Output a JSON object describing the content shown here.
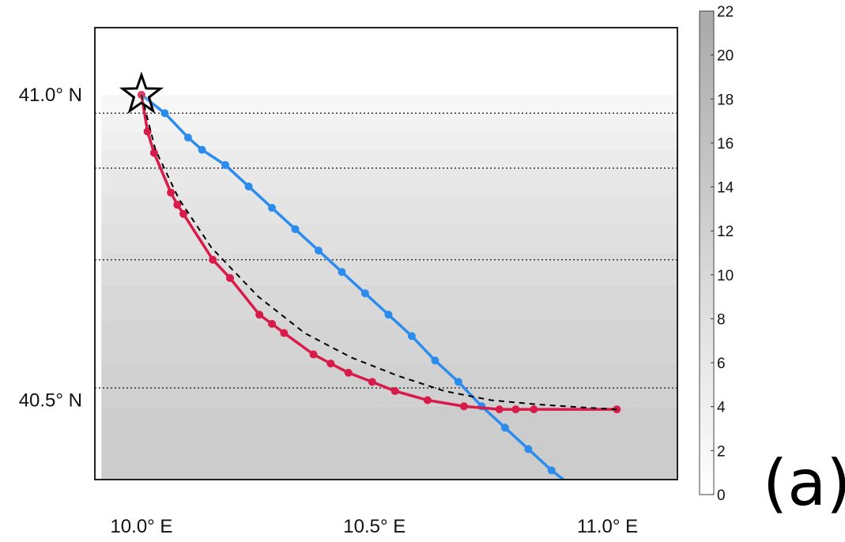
{
  "panel_label": "(a)",
  "colors": {
    "fixed_route": "#2b8cee",
    "optimal_route": "#d81b4a",
    "reference": "#000000",
    "contour": "#333333",
    "background_high": "#f4f4f4",
    "background_low": "#aaaaaa"
  },
  "chart_data": {
    "type": "line",
    "title": "",
    "xlabel": "",
    "ylabel": "",
    "xlim": [
      9.9,
      11.15
    ],
    "ylim": [
      40.37,
      41.11
    ],
    "x_ticks": [
      {
        "value": 10.0,
        "label": "10.0° E"
      },
      {
        "value": 10.5,
        "label": "10.5° E"
      },
      {
        "value": 11.0,
        "label": "11.0° E"
      }
    ],
    "y_ticks": [
      {
        "value": 41.0,
        "label": "41.0° N"
      },
      {
        "value": 40.5,
        "label": "40.5° N"
      }
    ],
    "grid": false,
    "background_field": {
      "description": "grayscale field increasing southward",
      "bands_lat": [
        [
          41.0,
          40.97,
          2
        ],
        [
          40.97,
          40.94,
          3
        ],
        [
          40.94,
          40.91,
          4
        ],
        [
          40.91,
          40.88,
          5
        ],
        [
          40.88,
          40.84,
          6
        ],
        [
          40.84,
          40.79,
          7
        ],
        [
          40.79,
          40.74,
          8
        ],
        [
          40.74,
          40.69,
          9
        ],
        [
          40.69,
          40.63,
          10
        ],
        [
          40.63,
          40.56,
          11
        ],
        [
          40.56,
          40.49,
          12
        ],
        [
          40.49,
          40.37,
          13
        ]
      ]
    },
    "contour_lines_lat": [
      40.97,
      40.88,
      40.73,
      40.52
    ],
    "start_marker": {
      "lon": 10.0,
      "lat": 41.0,
      "symbol": "star"
    },
    "colorbar": {
      "min": 0,
      "max": 22,
      "ticks": [
        0,
        2,
        4,
        6,
        8,
        10,
        12,
        14,
        16,
        18,
        20,
        22
      ],
      "tick_labels": [
        "0",
        "2",
        "4",
        "6",
        "8",
        "10",
        "12",
        "14",
        "16",
        "18",
        "20",
        "22"
      ]
    },
    "series": [
      {
        "id": "fixed-route",
        "style": "line-dots",
        "x": [
          10.0,
          10.05,
          10.1,
          10.13,
          10.18,
          10.23,
          10.28,
          10.33,
          10.38,
          10.43,
          10.48,
          10.53,
          10.58,
          10.63,
          10.68,
          10.73,
          10.78,
          10.83,
          10.88,
          10.94
        ],
        "y": [
          41.0,
          40.97,
          40.93,
          40.91,
          40.885,
          40.85,
          40.815,
          40.78,
          40.745,
          40.71,
          40.675,
          40.64,
          40.605,
          40.565,
          40.53,
          40.49,
          40.455,
          40.42,
          40.385,
          40.35
        ]
      },
      {
        "id": "optimal-route",
        "style": "line-dots",
        "x": [
          10.0,
          10.013,
          10.027,
          10.063,
          10.077,
          10.09,
          10.153,
          10.19,
          10.253,
          10.28,
          10.306,
          10.369,
          10.406,
          10.444,
          10.495,
          10.544,
          10.614,
          10.692,
          10.768,
          10.803,
          10.842,
          11.02
        ],
        "y": [
          41.0,
          40.94,
          40.905,
          40.84,
          40.82,
          40.805,
          40.73,
          40.7,
          40.64,
          40.625,
          40.61,
          40.575,
          40.56,
          40.545,
          40.53,
          40.515,
          40.5,
          40.49,
          40.485,
          40.485,
          40.485,
          40.485
        ]
      },
      {
        "id": "reference-route",
        "style": "dashed",
        "x": [
          10.0,
          10.03,
          10.08,
          10.15,
          10.25,
          10.35,
          10.45,
          10.55,
          10.65,
          10.75,
          10.85,
          10.95,
          11.02
        ],
        "y": [
          41.0,
          40.91,
          40.83,
          40.75,
          40.67,
          40.61,
          40.57,
          40.54,
          40.515,
          40.5,
          40.493,
          40.488,
          40.485
        ]
      }
    ]
  }
}
